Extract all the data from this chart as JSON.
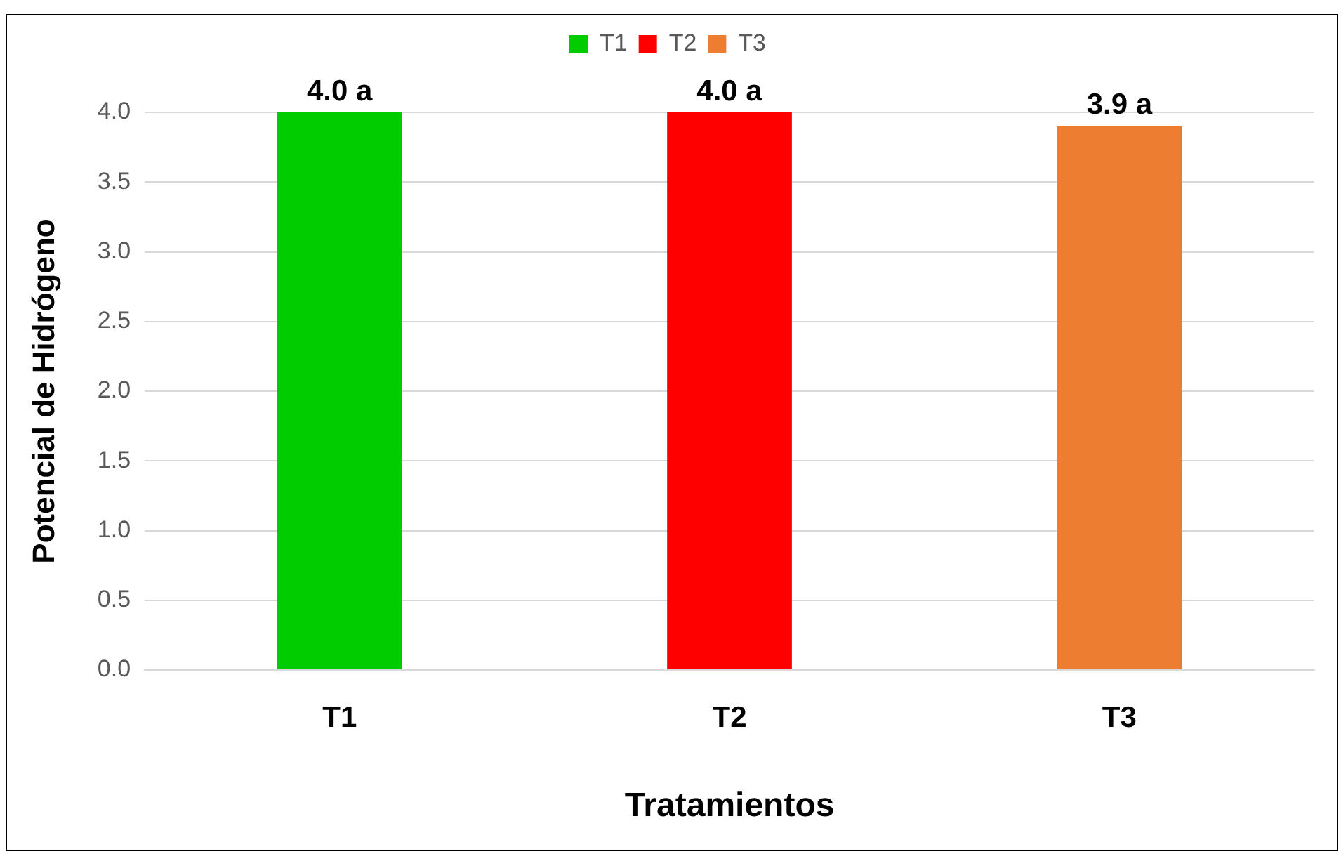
{
  "chart_data": {
    "type": "bar",
    "xlabel": "Tratamientos",
    "ylabel": "Potencial de Hidrógeno",
    "categories": [
      "T1",
      "T2",
      "T3"
    ],
    "series": [
      {
        "name": "T1",
        "color": "#00cc00",
        "values": [
          4.0,
          null,
          null
        ],
        "value_labels": [
          "4.0 a",
          null,
          null
        ]
      },
      {
        "name": "T2",
        "color": "#ff0000",
        "values": [
          null,
          4.0,
          null
        ],
        "value_labels": [
          null,
          "4.0 a",
          null
        ]
      },
      {
        "name": "T3",
        "color": "#ed7d31",
        "values": [
          null,
          null,
          3.9
        ],
        "value_labels": [
          null,
          null,
          "3.9 a"
        ]
      }
    ],
    "ylim": [
      0,
      4
    ],
    "yticks": [
      {
        "value": 0,
        "label": "0.0"
      },
      {
        "value": 0.5,
        "label": "0.5"
      },
      {
        "value": 1,
        "label": "1.0"
      },
      {
        "value": 1.5,
        "label": "1.5"
      },
      {
        "value": 2,
        "label": "2.0"
      },
      {
        "value": 2.5,
        "label": "2.5"
      },
      {
        "value": 3,
        "label": "3.0"
      },
      {
        "value": 3.5,
        "label": "3.5"
      },
      {
        "value": 4,
        "label": "4.0"
      }
    ],
    "grid": "y",
    "legend": "top"
  }
}
